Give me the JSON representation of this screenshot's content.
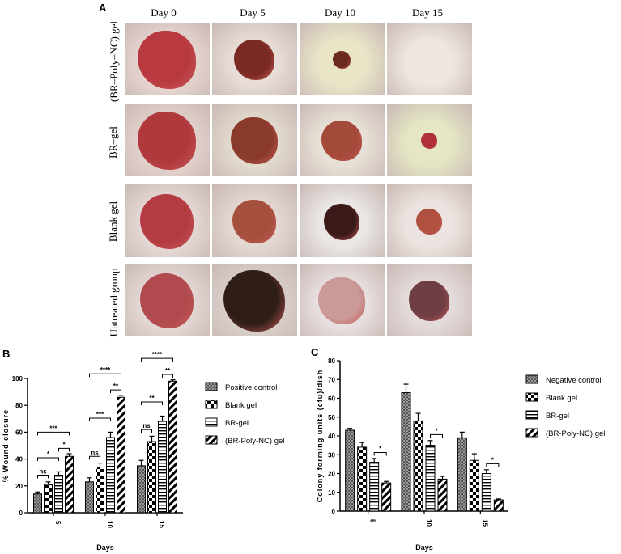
{
  "panels": {
    "a": "A",
    "b": "B",
    "c": "C"
  },
  "photo_grid": {
    "days": [
      "Day 0",
      "Day 5",
      "Day 10",
      "Day 15"
    ],
    "groups": [
      "(BR–Poly–NC) gel",
      "BR–gel",
      "Blank gel",
      "Untreated group"
    ]
  },
  "colors": {
    "bar_fill": "#7a7a7a",
    "ink": "#000000"
  },
  "chart_data": [
    {
      "type": "bar",
      "panel": "B",
      "xlabel": "Days",
      "ylabel": "% Wound closure",
      "categories": [
        "5",
        "10",
        "15"
      ],
      "ylim": [
        0,
        100
      ],
      "yticks": [
        0,
        20,
        40,
        60,
        80,
        100
      ],
      "legend_position": "right",
      "series": [
        {
          "name": "Positive control",
          "pattern": "grey-check",
          "values": [
            14,
            23,
            35
          ],
          "errors": [
            1.5,
            3,
            4
          ]
        },
        {
          "name": "Blank gel",
          "pattern": "checker",
          "values": [
            21,
            34,
            53
          ],
          "errors": [
            2,
            3,
            4
          ]
        },
        {
          "name": "BR-gel",
          "pattern": "hlines",
          "values": [
            28,
            56,
            68
          ],
          "errors": [
            2.5,
            4,
            4
          ]
        },
        {
          "name": "(BR-Poly-NC) gel",
          "pattern": "diag",
          "values": [
            42,
            86,
            98
          ],
          "errors": [
            2,
            1.5,
            1
          ]
        }
      ],
      "annotations": [
        {
          "cat": 0,
          "from": 0,
          "to": 1,
          "label": "ns"
        },
        {
          "cat": 0,
          "from": 0,
          "to": 2,
          "label": "*"
        },
        {
          "cat": 0,
          "from": 0,
          "to": 3,
          "label": "***"
        },
        {
          "cat": 0,
          "from": 2,
          "to": 3,
          "label": "*"
        },
        {
          "cat": 1,
          "from": 0,
          "to": 1,
          "label": "ns"
        },
        {
          "cat": 1,
          "from": 0,
          "to": 2,
          "label": "***"
        },
        {
          "cat": 1,
          "from": 0,
          "to": 3,
          "label": "****"
        },
        {
          "cat": 1,
          "from": 2,
          "to": 3,
          "label": "**"
        },
        {
          "cat": 2,
          "from": 0,
          "to": 1,
          "label": "ns"
        },
        {
          "cat": 2,
          "from": 0,
          "to": 2,
          "label": "**"
        },
        {
          "cat": 2,
          "from": 0,
          "to": 3,
          "label": "****"
        },
        {
          "cat": 2,
          "from": 2,
          "to": 3,
          "label": "**"
        }
      ]
    },
    {
      "type": "bar",
      "panel": "C",
      "xlabel": "Days",
      "ylabel": "Colony forming units (cfu)/dish",
      "categories": [
        "5",
        "10",
        "15"
      ],
      "ylim": [
        0,
        80
      ],
      "yticks": [
        0,
        10,
        20,
        30,
        40,
        50,
        60,
        70,
        80
      ],
      "legend_position": "right",
      "series": [
        {
          "name": "Negative control",
          "pattern": "grey-check",
          "values": [
            43,
            63,
            39
          ],
          "errors": [
            1,
            4.5,
            3
          ]
        },
        {
          "name": "Blank gel",
          "pattern": "checker",
          "values": [
            34,
            48,
            27
          ],
          "errors": [
            2.5,
            4,
            3.5
          ]
        },
        {
          "name": "BR-gel",
          "pattern": "hlines",
          "values": [
            26,
            35,
            20
          ],
          "errors": [
            2,
            2.5,
            2
          ]
        },
        {
          "name": "(BR-Poly-NC) gel",
          "pattern": "diag",
          "values": [
            15,
            17,
            6
          ],
          "errors": [
            0.8,
            1.5,
            0.5
          ]
        }
      ],
      "annotations": [
        {
          "cat": 0,
          "from": 2,
          "to": 3,
          "label": "*"
        },
        {
          "cat": 1,
          "from": 2,
          "to": 3,
          "label": "*"
        },
        {
          "cat": 2,
          "from": 2,
          "to": 3,
          "label": "*"
        }
      ]
    }
  ]
}
